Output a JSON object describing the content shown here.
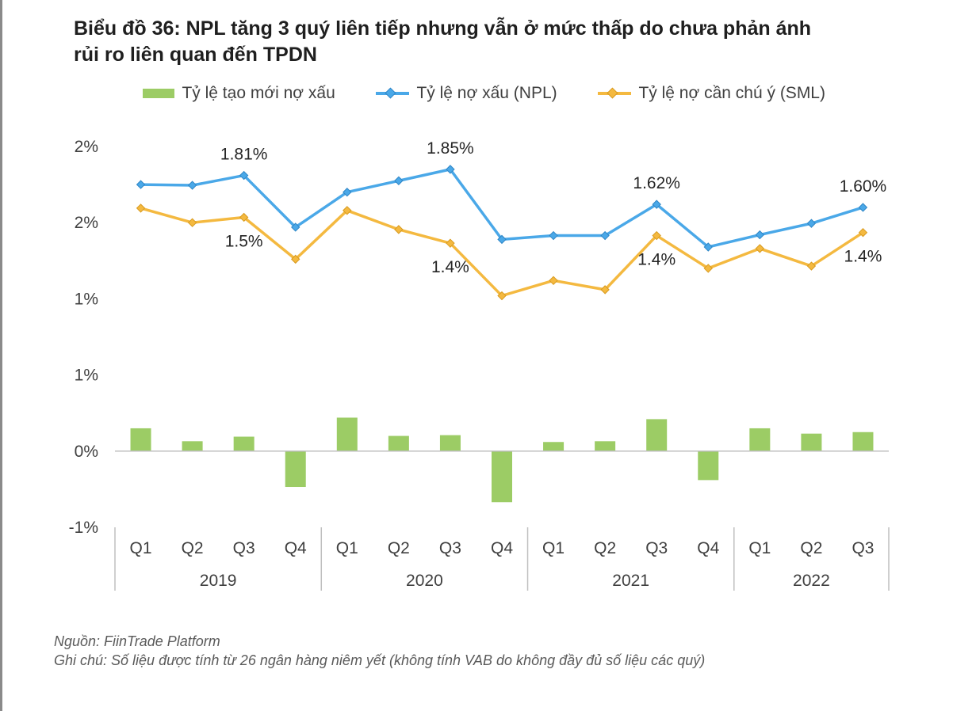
{
  "title": {
    "line1": "Biểu đồ 36: NPL tăng 3 quý liên tiếp nhưng vẫn ở mức thấp do chưa phản ánh",
    "line2": "rủi ro liên quan đến TPDN"
  },
  "colors": {
    "new_npl": "#9ccc65",
    "npl": "#4aa8e8",
    "sml": "#f4b940",
    "axis": "#bfbfbf",
    "text": "#404040"
  },
  "chart_data": {
    "type": "bar+line",
    "title": "Biểu đồ 36: NPL tăng 3 quý liên tiếp nhưng vẫn ở mức thấp do chưa phản ánh rủi ro liên quan đến TPDN",
    "categories": [
      "Q1",
      "Q2",
      "Q3",
      "Q4",
      "Q1",
      "Q2",
      "Q3",
      "Q4",
      "Q1",
      "Q2",
      "Q3",
      "Q4",
      "Q1",
      "Q2",
      "Q3"
    ],
    "groups": [
      {
        "label": "2019",
        "count": 4
      },
      {
        "label": "2020",
        "count": 4
      },
      {
        "label": "2021",
        "count": 4
      },
      {
        "label": "2022",
        "count": 3
      }
    ],
    "ylim": [
      -0.5,
      2.0
    ],
    "yticks": [
      {
        "value": -0.5,
        "label": "-1%"
      },
      {
        "value": 0.0,
        "label": "0%"
      },
      {
        "value": 0.5,
        "label": "1%"
      },
      {
        "value": 1.0,
        "label": "1%"
      },
      {
        "value": 1.5,
        "label": "2%"
      },
      {
        "value": 2.0,
        "label": "2%"
      }
    ],
    "series": [
      {
        "name": "Tỷ lệ tạo mới nợ xấu",
        "kind": "bar",
        "values": [
          0.15,
          0.065,
          0.095,
          -0.235,
          0.22,
          0.1,
          0.105,
          -0.335,
          0.06,
          0.065,
          0.21,
          -0.19,
          0.15,
          0.115,
          0.125
        ]
      },
      {
        "name": "Tỷ lệ nợ xấu (NPL)",
        "kind": "line",
        "values": [
          1.75,
          1.745,
          1.81,
          1.47,
          1.7,
          1.775,
          1.85,
          1.39,
          1.415,
          1.415,
          1.62,
          1.34,
          1.42,
          1.495,
          1.6
        ],
        "labels": [
          {
            "index": 2,
            "text": "1.81%",
            "pos": "above"
          },
          {
            "index": 6,
            "text": "1.85%",
            "pos": "above"
          },
          {
            "index": 10,
            "text": "1.62%",
            "pos": "above"
          },
          {
            "index": 14,
            "text": "1.60%",
            "pos": "above"
          }
        ]
      },
      {
        "name": "Tỷ lệ nợ cần chú ý (SML)",
        "kind": "line",
        "values": [
          1.595,
          1.5,
          1.535,
          1.26,
          1.58,
          1.455,
          1.365,
          1.02,
          1.12,
          1.06,
          1.415,
          1.2,
          1.33,
          1.215,
          1.435
        ],
        "labels": [
          {
            "index": 2,
            "text": "1.5%",
            "pos": "below"
          },
          {
            "index": 6,
            "text": "1.4%",
            "pos": "below"
          },
          {
            "index": 10,
            "text": "1.4%",
            "pos": "below"
          },
          {
            "index": 14,
            "text": "1.4%",
            "pos": "below"
          }
        ]
      }
    ],
    "legend_position": "top"
  },
  "footnote": {
    "source": "Nguồn: FiinTrade Platform",
    "note": "Ghi chú: Số liệu được tính từ 26 ngân hàng niêm yết (không tính VAB do không đầy đủ số liệu các quý)"
  }
}
